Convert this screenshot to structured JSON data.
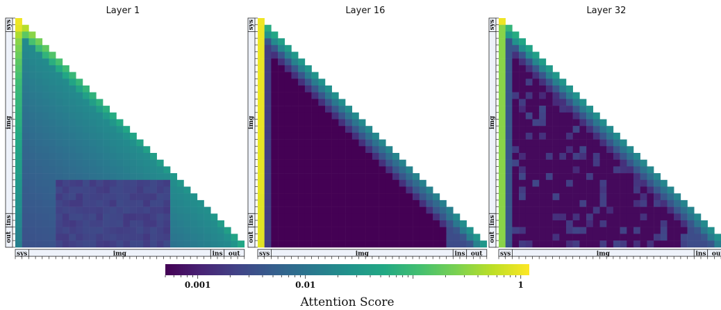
{
  "chart_data": {
    "type": "heatmap",
    "n": 34,
    "token_groups": [
      {
        "label": "sys",
        "start": 0,
        "end": 1
      },
      {
        "label": "img",
        "start": 2,
        "end": 28
      },
      {
        "label": "ins",
        "start": 29,
        "end": 30
      },
      {
        "label": "out",
        "start": 31,
        "end": 33
      }
    ],
    "colorscale": "viridis",
    "color_scale_type": "log",
    "color_range": [
      0.0005,
      1.2
    ],
    "colorbar": {
      "title": "Attention Score",
      "ticks": [
        {
          "value": 0.001,
          "label": "0.001"
        },
        {
          "value": 0.01,
          "label": "0.01"
        },
        {
          "value": 1,
          "label": "1"
        }
      ]
    },
    "panels": [
      {
        "title": "Layer 1",
        "sys_col": [
          1.0,
          0.9,
          0.45,
          0.3,
          0.25,
          0.2,
          0.16,
          0.14,
          0.12,
          0.1,
          0.09,
          0.085,
          0.08,
          0.075,
          0.07,
          0.065,
          0.06,
          0.055,
          0.05,
          0.045,
          0.042,
          0.04,
          0.038,
          0.035,
          0.03,
          0.028,
          0.026,
          0.024,
          0.022,
          0.02,
          0.018,
          0.016,
          0.015,
          0.014
        ],
        "diag_vals": [
          1.0,
          0.5,
          0.3,
          0.22,
          0.17,
          0.14,
          0.12,
          0.1,
          0.09,
          0.085,
          0.08,
          0.075,
          0.07,
          0.065,
          0.06,
          0.055,
          0.05,
          0.047,
          0.044,
          0.041,
          0.038,
          0.035,
          0.033,
          0.031,
          0.029,
          0.027,
          0.025,
          0.024,
          0.023,
          0.03,
          0.035,
          0.04,
          0.045,
          0.05
        ],
        "body": "diffuse",
        "lower_right_min": 0.0008
      },
      {
        "title": "Layer 16",
        "sys_col": [
          1.0,
          0.95,
          0.95,
          0.95,
          0.95,
          0.95,
          0.95,
          0.95,
          0.95,
          0.95,
          0.95,
          0.95,
          0.95,
          0.95,
          0.95,
          0.95,
          0.95,
          0.95,
          0.9,
          0.9,
          0.9,
          0.9,
          0.9,
          0.9,
          0.9,
          0.9,
          0.85,
          0.85,
          0.85,
          0.85,
          0.85,
          0.85,
          0.85,
          0.85
        ],
        "diag_vals": [
          1.0,
          0.06,
          0.05,
          0.04,
          0.035,
          0.03,
          0.03,
          0.028,
          0.026,
          0.025,
          0.024,
          0.023,
          0.022,
          0.021,
          0.02,
          0.02,
          0.019,
          0.018,
          0.018,
          0.017,
          0.017,
          0.016,
          0.016,
          0.016,
          0.015,
          0.015,
          0.015,
          0.014,
          0.014,
          0.02,
          0.022,
          0.025,
          0.028,
          0.03
        ],
        "body": "sparse",
        "floor": 0.0005
      },
      {
        "title": "Layer 32",
        "sys_col": [
          1.0,
          0.3,
          0.3,
          0.3,
          0.3,
          0.3,
          0.3,
          0.3,
          0.3,
          0.3,
          0.3,
          0.3,
          0.3,
          0.3,
          0.3,
          0.3,
          0.3,
          0.3,
          0.3,
          0.3,
          0.3,
          0.3,
          0.3,
          0.3,
          0.3,
          0.3,
          0.3,
          0.3,
          0.3,
          0.3,
          0.3,
          0.3,
          0.3,
          0.3
        ],
        "diag_vals": [
          1.0,
          0.08,
          0.06,
          0.05,
          0.045,
          0.04,
          0.035,
          0.032,
          0.03,
          0.028,
          0.026,
          0.025,
          0.024,
          0.023,
          0.022,
          0.021,
          0.02,
          0.02,
          0.019,
          0.019,
          0.018,
          0.018,
          0.018,
          0.017,
          0.017,
          0.017,
          0.016,
          0.016,
          0.016,
          0.018,
          0.02,
          0.022,
          0.024,
          0.026
        ],
        "body": "sparse_stripes",
        "floor": 0.0006
      }
    ]
  }
}
